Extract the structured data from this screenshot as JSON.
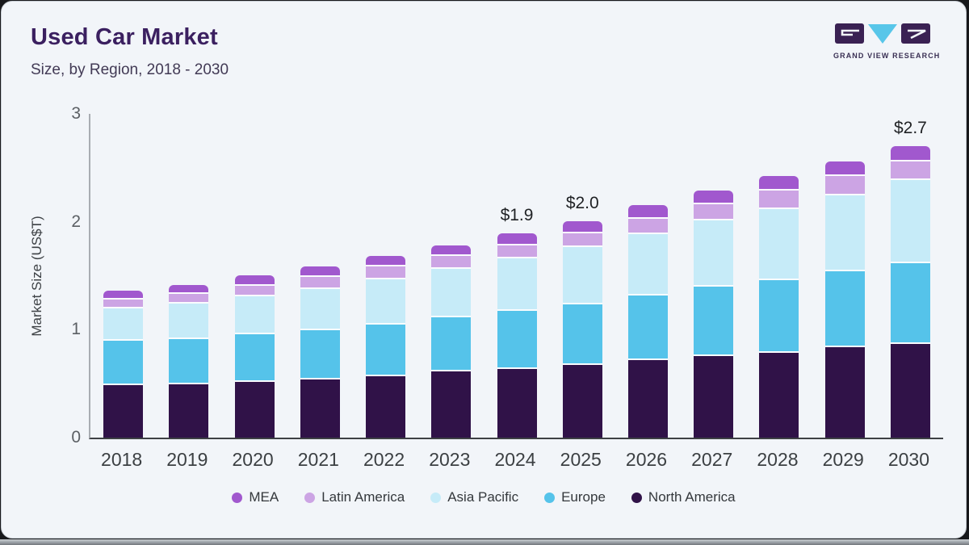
{
  "header": {
    "title": "Used Car Market",
    "subtitle": "Size, by Region, 2018 - 2030"
  },
  "logo": {
    "company": "Grand View Research",
    "caption": "GRAND VIEW RESEARCH",
    "colors": {
      "block": "#3a2153",
      "triangle": "#58c6e9"
    }
  },
  "chart_data": {
    "type": "bar",
    "stacked": true,
    "title": "Used Car Market Size, by Region, 2018 - 2030",
    "ylabel": "Market Size (US$T)",
    "ylim": [
      0,
      3
    ],
    "yticks": [
      0,
      1,
      2,
      3
    ],
    "grid": false,
    "legend_position": "bottom",
    "categories": [
      2018,
      2019,
      2020,
      2021,
      2022,
      2023,
      2024,
      2025,
      2026,
      2027,
      2028,
      2029,
      2030
    ],
    "series": [
      {
        "name": "North America",
        "color": "#301248",
        "values": [
          0.5,
          0.51,
          0.53,
          0.55,
          0.58,
          0.63,
          0.65,
          0.69,
          0.73,
          0.77,
          0.8,
          0.85,
          0.88
        ]
      },
      {
        "name": "Europe",
        "color": "#55c3ea",
        "values": [
          0.41,
          0.42,
          0.44,
          0.46,
          0.48,
          0.5,
          0.54,
          0.56,
          0.6,
          0.64,
          0.67,
          0.7,
          0.75
        ]
      },
      {
        "name": "Asia Pacific",
        "color": "#c6ebf8",
        "values": [
          0.3,
          0.33,
          0.35,
          0.38,
          0.42,
          0.45,
          0.49,
          0.53,
          0.57,
          0.61,
          0.66,
          0.7,
          0.77
        ]
      },
      {
        "name": "Latin America",
        "color": "#cca4e4",
        "values": [
          0.08,
          0.09,
          0.1,
          0.11,
          0.12,
          0.12,
          0.12,
          0.13,
          0.14,
          0.15,
          0.17,
          0.18,
          0.17
        ]
      },
      {
        "name": "MEA",
        "color": "#a158ce",
        "values": [
          0.07,
          0.07,
          0.08,
          0.08,
          0.08,
          0.08,
          0.1,
          0.1,
          0.11,
          0.11,
          0.12,
          0.12,
          0.13
        ]
      }
    ],
    "totals": [
      1.36,
      1.42,
      1.5,
      1.58,
      1.68,
      1.78,
      1.9,
      2.01,
      2.15,
      2.28,
      2.42,
      2.55,
      2.7
    ],
    "bar_labels": {
      "2024": "$1.9",
      "2025": "$2.0",
      "2030": "$2.7"
    },
    "legend_order": [
      "MEA",
      "Latin America",
      "Asia Pacific",
      "Europe",
      "North America"
    ]
  }
}
